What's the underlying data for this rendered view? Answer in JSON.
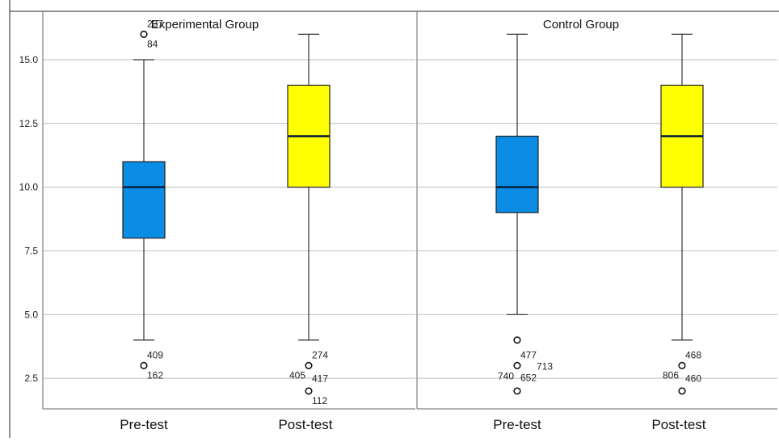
{
  "chart_data": {
    "type": "boxplot",
    "yticks": [
      "2.5",
      "5.0",
      "7.5",
      "10.0",
      "12.5",
      "15.0"
    ],
    "ylim": [
      1.3,
      16.9
    ],
    "categories": [
      "Pre-test",
      "Post-test"
    ],
    "colors": {
      "pre": "#0b8de6",
      "post": "#ffff00",
      "median": "#0a1e3a",
      "grid": "#c8c8c8"
    },
    "panels": [
      {
        "title": "Experimental Group",
        "boxes": [
          {
            "category": "Pre-test",
            "min": 4,
            "q1": 8,
            "median": 10,
            "q3": 11,
            "max": 15,
            "outliers": [
              {
                "value": 16,
                "labels": [
                  "237",
                  "84"
                ]
              },
              {
                "value": 3,
                "labels": [
                  "409",
                  "162"
                ]
              }
            ]
          },
          {
            "category": "Post-test",
            "min": 4,
            "q1": 10,
            "median": 12,
            "q3": 14,
            "max": 16,
            "outliers": [
              {
                "value": 3,
                "labels": [
                  "274",
                  "405",
                  "417"
                ]
              },
              {
                "value": 2,
                "labels": [
                  "112"
                ]
              }
            ]
          }
        ]
      },
      {
        "title": "Control Group",
        "boxes": [
          {
            "category": "Pre-test",
            "min": 5,
            "q1": 9,
            "median": 10,
            "q3": 12,
            "max": 16,
            "outliers": [
              {
                "value": 4,
                "labels": []
              },
              {
                "value": 3,
                "labels": [
                  "477",
                  "740",
                  "652",
                  "713"
                ]
              },
              {
                "value": 2,
                "labels": []
              }
            ]
          },
          {
            "category": "Post-test",
            "min": 4,
            "q1": 10,
            "median": 12,
            "q3": 14,
            "max": 16,
            "outliers": [
              {
                "value": 3,
                "labels": [
                  "468",
                  "806",
                  "460"
                ]
              },
              {
                "value": 2,
                "labels": []
              }
            ]
          }
        ]
      }
    ]
  }
}
